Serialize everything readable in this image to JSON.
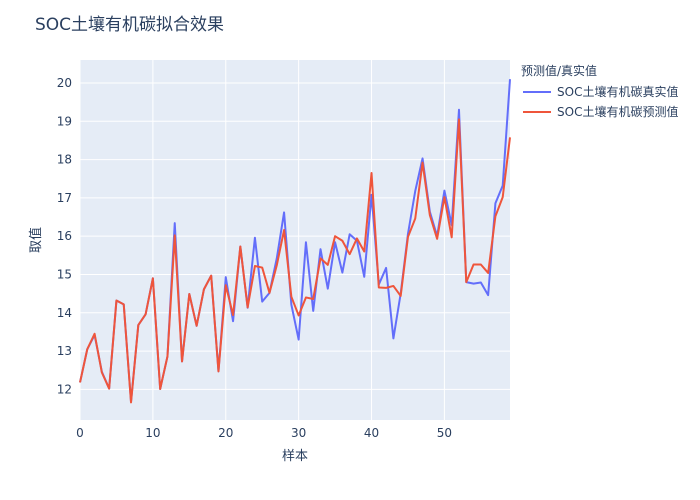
{
  "chart_data": {
    "type": "line",
    "title": "SOC土壤有机碳拟合效果",
    "xlabel": "样本",
    "ylabel": "取值",
    "xlim": [
      0,
      59
    ],
    "ylim": [
      11.2,
      20.6
    ],
    "x_ticks": [
      0,
      10,
      20,
      30,
      40,
      50
    ],
    "y_ticks": [
      12,
      13,
      14,
      15,
      16,
      17,
      18,
      19,
      20
    ],
    "grid": true,
    "legend_title": "预测值/真实值",
    "legend_position": "right",
    "series": [
      {
        "name": "SOC土壤有机碳真实值",
        "color": "#636efa",
        "x": [
          0,
          1,
          2,
          3,
          4,
          5,
          6,
          7,
          8,
          9,
          10,
          11,
          12,
          13,
          14,
          15,
          16,
          17,
          18,
          19,
          20,
          21,
          22,
          23,
          24,
          25,
          26,
          27,
          28,
          29,
          30,
          31,
          32,
          33,
          34,
          35,
          36,
          37,
          38,
          39,
          40,
          41,
          42,
          43,
          44,
          45,
          46,
          47,
          48,
          49,
          50,
          51,
          52,
          53,
          54,
          55,
          56,
          57,
          58,
          59
        ],
        "values": [
          12.18,
          13.05,
          13.42,
          12.46,
          12.02,
          14.32,
          14.22,
          11.68,
          13.68,
          13.96,
          14.9,
          12.01,
          12.86,
          16.34,
          12.73,
          14.49,
          13.66,
          14.61,
          14.97,
          12.47,
          14.93,
          13.78,
          15.73,
          14.13,
          15.96,
          14.29,
          14.52,
          15.42,
          16.62,
          14.21,
          13.3,
          15.84,
          14.05,
          15.66,
          14.63,
          15.84,
          15.05,
          16.05,
          15.88,
          14.94,
          17.08,
          14.74,
          15.17,
          13.33,
          14.5,
          16.06,
          17.18,
          18.03,
          16.64,
          16.0,
          17.19,
          16.29,
          19.3,
          14.8,
          14.76,
          14.79,
          14.46,
          16.86,
          17.32,
          20.1
        ]
      },
      {
        "name": "SOC土壤有机碳预测值",
        "color": "#ef553b",
        "x": [
          0,
          1,
          2,
          3,
          4,
          5,
          6,
          7,
          8,
          9,
          10,
          11,
          12,
          13,
          14,
          15,
          16,
          17,
          18,
          19,
          20,
          21,
          22,
          23,
          24,
          25,
          26,
          27,
          28,
          29,
          30,
          31,
          32,
          33,
          34,
          35,
          36,
          37,
          38,
          39,
          40,
          41,
          42,
          43,
          44,
          45,
          46,
          47,
          48,
          49,
          50,
          51,
          52,
          53,
          54,
          55,
          56,
          57,
          58,
          59
        ],
        "values": [
          12.18,
          13.05,
          13.45,
          12.44,
          12.02,
          14.32,
          14.22,
          11.66,
          13.68,
          13.96,
          14.9,
          12.01,
          12.86,
          16.02,
          12.73,
          14.49,
          13.66,
          14.61,
          14.97,
          12.47,
          14.72,
          13.94,
          15.73,
          14.14,
          15.22,
          15.18,
          14.52,
          15.24,
          16.16,
          14.42,
          13.93,
          14.4,
          14.36,
          15.42,
          15.25,
          16.0,
          15.88,
          15.53,
          15.94,
          15.6,
          17.65,
          14.66,
          14.65,
          14.7,
          14.44,
          15.98,
          16.46,
          17.92,
          16.55,
          15.93,
          17.02,
          15.97,
          19.05,
          14.8,
          15.26,
          15.26,
          15.04,
          16.52,
          17.02,
          18.58
        ]
      }
    ]
  }
}
